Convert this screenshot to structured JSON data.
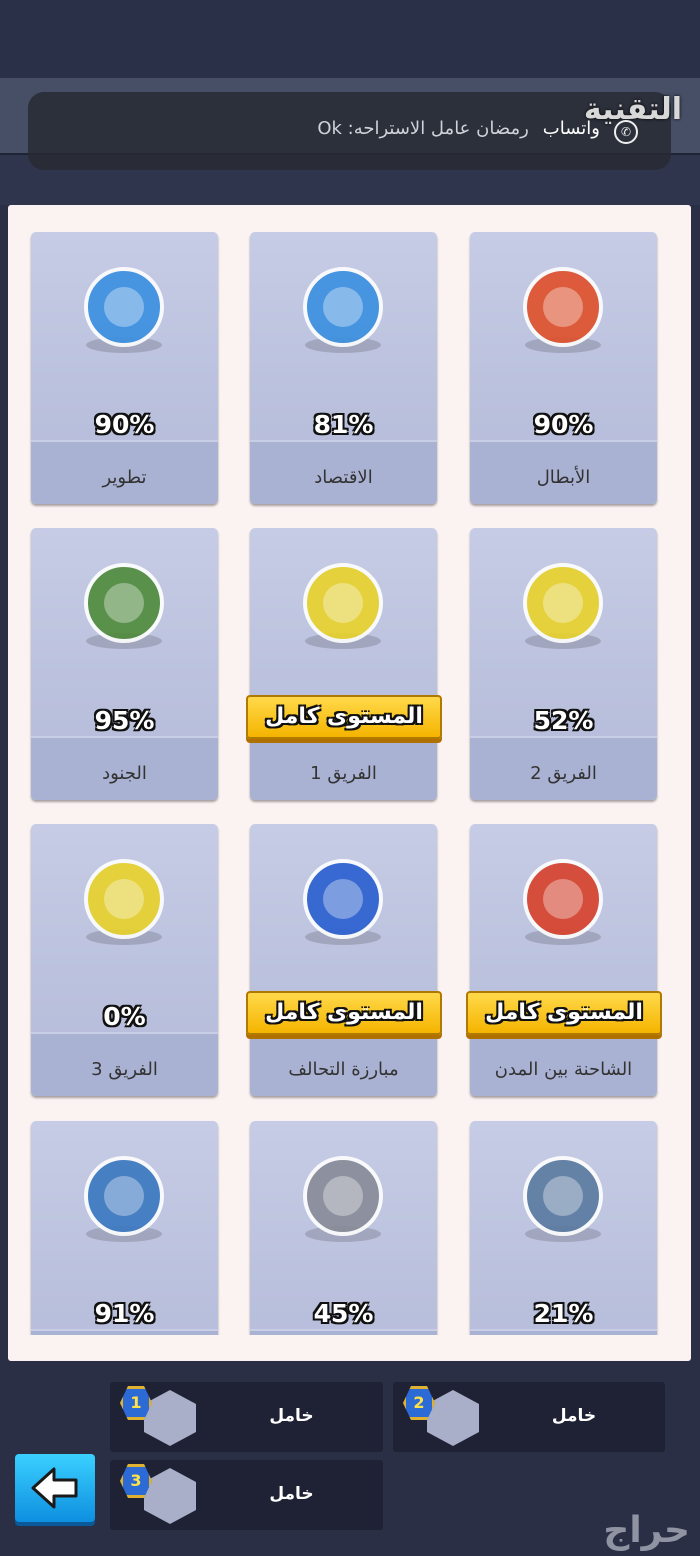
{
  "notification": {
    "title": "التقنية",
    "app": "واتساب",
    "message": "رمضان عامل الاستراحه: Ok",
    "icon": "whatsapp-icon"
  },
  "cards": [
    {
      "label": "الأبطال",
      "percent": "90%",
      "icon": "hero-icon",
      "color": "#e0502a"
    },
    {
      "label": "الاقتصاد",
      "percent": "81%",
      "icon": "headquarters-icon",
      "color": "#3a8fe0"
    },
    {
      "label": "تطوير",
      "percent": "90%",
      "icon": "building-icon",
      "color": "#3a8fe0"
    },
    {
      "label": "الفريق 2",
      "percent": "52%",
      "icon": "tank-icon",
      "color": "#e8d22a"
    },
    {
      "label": "الفريق 1",
      "banner": "المستوى كامل",
      "icon": "tank-icon",
      "color": "#e8d22a"
    },
    {
      "label": "الجنود",
      "percent": "95%",
      "icon": "helmet-icon",
      "color": "#4e8a3a"
    },
    {
      "label": "الشاحنة بين المدن",
      "banner": "المستوى كامل",
      "icon": "truck-icon",
      "color": "#d8402a"
    },
    {
      "label": "مبارزة التحالف",
      "banner": "المستوى كامل",
      "icon": "versus-icon",
      "color": "#2a5fd0"
    },
    {
      "label": "الفريق 3",
      "percent": "0%",
      "icon": "tank-icon",
      "color": "#e8d22a"
    },
    {
      "label": "",
      "percent": "21%",
      "icon": "shield-gear-icon",
      "color": "#5a7aa0"
    },
    {
      "label": "",
      "percent": "45%",
      "icon": "missile-icon",
      "color": "#888c98"
    },
    {
      "label": "",
      "percent": "91%",
      "icon": "helmet-plus-icon",
      "color": "#3a78c0"
    }
  ],
  "slots": [
    {
      "number": "1",
      "label": "خامل"
    },
    {
      "number": "2",
      "label": "خامل"
    },
    {
      "number": "3",
      "label": "خامل"
    }
  ],
  "back_icon": "arrow-left-icon",
  "watermark": "حراج"
}
